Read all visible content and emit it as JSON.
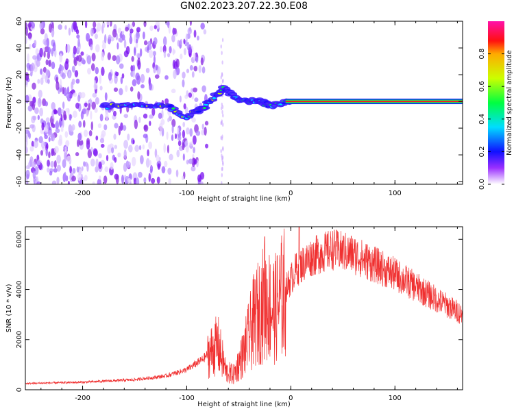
{
  "figure_title": "GN02.2023.207.22.30.E08",
  "colors": {
    "snr_line": "#f03030",
    "track": "#ee2222",
    "noise": "#8a2be2",
    "background": "#ffffff"
  },
  "chart_data": [
    {
      "type": "heatmap",
      "title": "",
      "xlabel": "Height of straight line (km)",
      "ylabel": "Frequency (Hz)",
      "xlim": [
        -255,
        165
      ],
      "ylim": [
        -62,
        60
      ],
      "x_ticks": [
        -200,
        -100,
        0,
        100
      ],
      "y_ticks": [
        -60,
        -40,
        -20,
        0,
        20,
        40,
        60
      ],
      "colorbar": {
        "label": "Normalized spectral amplitude",
        "range": [
          0,
          1
        ],
        "ticks": [
          "0.0",
          "0.2",
          "0.4",
          "0.6",
          "0.8"
        ],
        "tick_values": [
          0,
          0.2,
          0.4,
          0.6,
          0.8
        ],
        "colormap": "rainbow (white → violet → blue → cyan → green → yellow → red → magenta)"
      },
      "features": {
        "noise_region_x": [
          -255,
          -100
        ],
        "main_track": [
          {
            "x": -180,
            "y": -4
          },
          {
            "x": -150,
            "y": -2
          },
          {
            "x": -120,
            "y": -3
          },
          {
            "x": -100,
            "y": -12
          },
          {
            "x": -80,
            "y": -2
          },
          {
            "x": -65,
            "y": 10
          },
          {
            "x": -50,
            "y": 1
          },
          {
            "x": -30,
            "y": 0
          },
          {
            "x": -20,
            "y": -3
          },
          {
            "x": 0,
            "y": 0
          },
          {
            "x": 165,
            "y": 0
          }
        ],
        "spike_x": -66
      }
    },
    {
      "type": "line",
      "title": "",
      "xlabel": "Height of straight line (km)",
      "ylabel": "SNR (10 * v/v)",
      "xlim": [
        -255,
        165
      ],
      "ylim": [
        0,
        6500
      ],
      "x_ticks": [
        -200,
        -100,
        0,
        100
      ],
      "y_ticks": [
        0,
        2000,
        4000,
        6000
      ],
      "series": [
        {
          "envelope": [
            {
              "x": -255,
              "y": 250
            },
            {
              "x": -200,
              "y": 300
            },
            {
              "x": -150,
              "y": 400
            },
            {
              "x": -120,
              "y": 550
            },
            {
              "x": -100,
              "y": 800
            },
            {
              "x": -85,
              "y": 1200
            },
            {
              "x": -70,
              "y": 1800
            },
            {
              "x": -62,
              "y": 700
            },
            {
              "x": -55,
              "y": 600
            },
            {
              "x": -45,
              "y": 1500
            },
            {
              "x": -35,
              "y": 2800
            },
            {
              "x": -25,
              "y": 3500
            },
            {
              "x": -15,
              "y": 3200
            },
            {
              "x": -5,
              "y": 4000
            },
            {
              "x": 5,
              "y": 4800
            },
            {
              "x": 20,
              "y": 5300
            },
            {
              "x": 40,
              "y": 5600
            },
            {
              "x": 60,
              "y": 5400
            },
            {
              "x": 80,
              "y": 5000
            },
            {
              "x": 100,
              "y": 4600
            },
            {
              "x": 120,
              "y": 4100
            },
            {
              "x": 140,
              "y": 3600
            },
            {
              "x": 165,
              "y": 3000
            }
          ],
          "noise_amplitude_fraction": 0.15,
          "peaks": [
            {
              "x": -25,
              "y": 6100
            },
            {
              "x": 8,
              "y": 6500
            }
          ]
        }
      ]
    }
  ]
}
